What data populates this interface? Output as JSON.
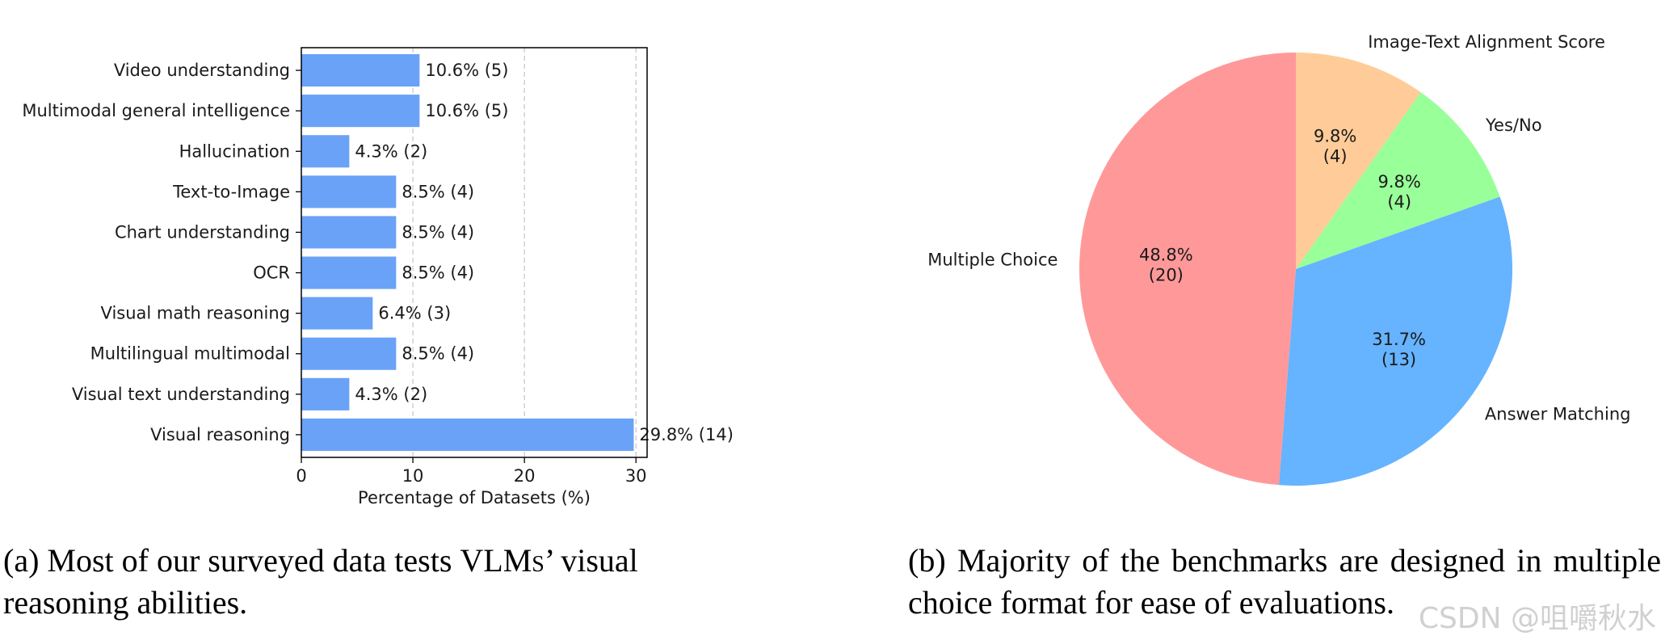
{
  "chart_data": [
    {
      "type": "bar",
      "orientation": "horizontal",
      "categories": [
        "Video understanding",
        "Multimodal general intelligence",
        "Hallucination",
        "Text-to-Image",
        "Chart understanding",
        "OCR",
        "Visual math reasoning",
        "Multilingual multimodal",
        "Visual text understanding",
        "Visual reasoning"
      ],
      "values": [
        10.6,
        10.6,
        4.3,
        8.5,
        8.5,
        8.5,
        6.4,
        8.5,
        4.3,
        29.8
      ],
      "data_labels": [
        "10.6% (5)",
        "10.6% (5)",
        "4.3% (2)",
        "8.5% (4)",
        "8.5% (4)",
        "8.5% (4)",
        "6.4% (3)",
        "8.5% (4)",
        "4.3% (2)",
        "29.8% (14)"
      ],
      "xlabel": "Percentage of Datasets (%)",
      "ylabel": "",
      "xlim": [
        0,
        31
      ],
      "xticks": [
        0,
        10,
        20,
        30
      ],
      "grid": "x-dashed",
      "color": "#6aa2f7"
    },
    {
      "type": "pie",
      "labels": [
        "Image-Text Alignment Score",
        "Yes/No",
        "Answer Matching",
        "Multiple Choice"
      ],
      "values": [
        9.8,
        9.8,
        31.7,
        48.8
      ],
      "counts": [
        4,
        4,
        13,
        20
      ],
      "pct_labels": [
        "9.8%",
        "9.8%",
        "31.7%",
        "48.8%"
      ],
      "count_labels": [
        "(4)",
        "(4)",
        "(13)",
        "(20)"
      ],
      "colors": [
        "#ffcc99",
        "#99ff99",
        "#66b3ff",
        "#ff9999"
      ],
      "start_angle": "90",
      "direction": "clockwise"
    }
  ],
  "captions": {
    "a_prefix": "(a) Most of our surveyed data tests",
    "a_smallcaps": "VLMs",
    "a_suffix": "’ visual reasoning abilities.",
    "b": "(b) Majority of the benchmarks are designed in multiple choice format for ease of evaluations."
  },
  "watermark": "CSDN @咀嚼秋水"
}
